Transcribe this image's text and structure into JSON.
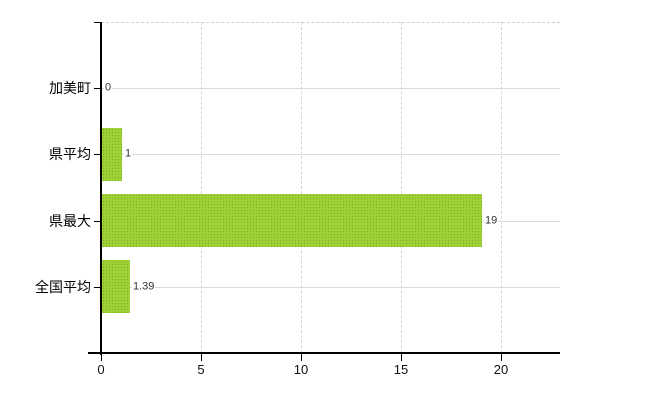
{
  "chart_data": {
    "type": "bar",
    "orientation": "horizontal",
    "title": "",
    "categories": [
      "加美町",
      "県平均",
      "県最大",
      "全国平均"
    ],
    "values": [
      0,
      1,
      19,
      1.39
    ],
    "value_labels": [
      "0",
      "1",
      "19",
      "1.39"
    ],
    "x_ticks": [
      0,
      5,
      10,
      15,
      20
    ],
    "x_tick_labels": [
      "0",
      "5",
      "10",
      "15",
      "20"
    ],
    "xlim": [
      0,
      22.95
    ],
    "xlabel": "",
    "ylabel": "",
    "grid": true,
    "legend": false,
    "bar_color": "#9acd32",
    "bar_dot_color": "#78ae28",
    "axis_color": "#000000",
    "hgrid_color": "#d4e0d0",
    "vgrid_color": "#d8d4d8",
    "category_label_color": "#000000",
    "value_label_color": "#333333"
  }
}
